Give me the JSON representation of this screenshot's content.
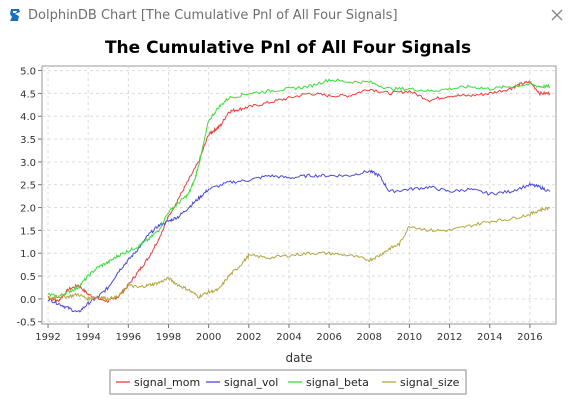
{
  "window": {
    "title": "DolphinDB Chart [The Cumulative Pnl of All Four Signals]",
    "icon": "dolphindb-logo-icon",
    "close_icon": "close-icon"
  },
  "chart_data": {
    "type": "line",
    "title": "The Cumulative Pnl of All Four Signals",
    "xlabel": "date",
    "ylabel": "",
    "xlim": [
      1991.7,
      2017.3
    ],
    "ylim": [
      -0.55,
      5.1
    ],
    "x_ticks": [
      1992,
      1994,
      1996,
      1998,
      2000,
      2002,
      2004,
      2006,
      2008,
      2010,
      2012,
      2014,
      2016
    ],
    "y_ticks": [
      -0.5,
      0.0,
      0.5,
      1.0,
      1.5,
      2.0,
      2.5,
      3.0,
      3.5,
      4.0,
      4.5,
      5.0
    ],
    "y_tick_labels": [
      "-0.5",
      "0.0",
      "0.5",
      "1.0",
      "1.5",
      "2.0",
      "2.5",
      "3.0",
      "3.5",
      "4.0",
      "4.5",
      "5.0"
    ],
    "grid": true,
    "legend": "bottom",
    "series": [
      {
        "name": "signal_mom",
        "color": "#e8403c",
        "x": [
          1992,
          1992.5,
          1993,
          1993.5,
          1994,
          1994.5,
          1995,
          1995.5,
          1996,
          1996.5,
          1997,
          1997.5,
          1998,
          1998.5,
          1999,
          1999.5,
          2000,
          2000.3,
          2000.6,
          2001,
          2001.5,
          2002,
          2003,
          2004,
          2005,
          2006,
          2007,
          2008,
          2009,
          2010,
          2011,
          2012,
          2013,
          2014,
          2015,
          2015.5,
          2016,
          2016.5,
          2017
        ],
        "values": [
          0.05,
          -0.05,
          0.2,
          0.3,
          0.1,
          0.0,
          -0.05,
          0.05,
          0.3,
          0.6,
          0.9,
          1.3,
          1.8,
          2.2,
          2.6,
          3.0,
          3.6,
          3.7,
          3.8,
          4.1,
          4.15,
          4.2,
          4.3,
          4.4,
          4.5,
          4.45,
          4.45,
          4.6,
          4.5,
          4.55,
          4.35,
          4.45,
          4.45,
          4.5,
          4.6,
          4.7,
          4.75,
          4.5,
          4.5
        ]
      },
      {
        "name": "signal_vol",
        "color": "#4b4bd6",
        "x": [
          1992,
          1992.5,
          1993,
          1993.5,
          1994,
          1994.5,
          1995,
          1995.5,
          1996,
          1996.5,
          1997,
          1997.5,
          1998,
          1998.5,
          1999,
          1999.5,
          2000,
          2001,
          2002,
          2003,
          2004,
          2005,
          2006,
          2007,
          2008,
          2008.5,
          2009,
          2010,
          2011,
          2012,
          2013,
          2014,
          2015,
          2016,
          2016.5,
          2017
        ],
        "values": [
          0.0,
          -0.1,
          -0.2,
          -0.3,
          -0.1,
          0.05,
          0.25,
          0.6,
          0.85,
          1.1,
          1.4,
          1.6,
          1.7,
          1.8,
          2.0,
          2.2,
          2.4,
          2.55,
          2.6,
          2.7,
          2.65,
          2.7,
          2.7,
          2.7,
          2.8,
          2.7,
          2.35,
          2.4,
          2.45,
          2.35,
          2.4,
          2.3,
          2.35,
          2.5,
          2.45,
          2.35
        ]
      },
      {
        "name": "signal_beta",
        "color": "#3ddc3d",
        "x": [
          1992,
          1992.5,
          1993,
          1993.5,
          1994,
          1994.5,
          1995,
          1995.5,
          1996,
          1996.5,
          1997,
          1997.5,
          1998,
          1998.5,
          1999,
          1999.3,
          1999.6,
          2000,
          2000.5,
          2001,
          2002,
          2003,
          2004,
          2005,
          2006,
          2007,
          2008,
          2009,
          2010,
          2011,
          2012,
          2013,
          2014,
          2015,
          2016,
          2016.5,
          2017
        ],
        "values": [
          0.1,
          0.05,
          0.15,
          0.25,
          0.5,
          0.7,
          0.8,
          0.95,
          1.05,
          1.15,
          1.3,
          1.5,
          1.9,
          2.1,
          2.3,
          2.6,
          3.1,
          3.9,
          4.2,
          4.4,
          4.5,
          4.55,
          4.6,
          4.65,
          4.8,
          4.75,
          4.75,
          4.6,
          4.6,
          4.55,
          4.6,
          4.65,
          4.6,
          4.65,
          4.7,
          4.65,
          4.65
        ]
      },
      {
        "name": "signal_size",
        "color": "#b5a642",
        "x": [
          1992,
          1992.5,
          1993,
          1993.5,
          1994,
          1994.5,
          1995,
          1995.5,
          1996,
          1996.5,
          1997,
          1997.5,
          1998,
          1998.5,
          1999,
          1999.5,
          2000,
          2000.5,
          2001,
          2001.5,
          2002,
          2003,
          2004,
          2005,
          2006,
          2007,
          2008,
          2008.5,
          2009,
          2009.5,
          2010,
          2011,
          2012,
          2013,
          2014,
          2015,
          2016,
          2016.5,
          2017
        ],
        "values": [
          0.0,
          0.05,
          0.05,
          0.1,
          0.0,
          0.05,
          0.0,
          0.05,
          0.3,
          0.25,
          0.3,
          0.35,
          0.45,
          0.3,
          0.2,
          0.05,
          0.15,
          0.2,
          0.5,
          0.7,
          0.95,
          0.9,
          0.95,
          1.0,
          1.0,
          0.95,
          0.85,
          0.95,
          1.1,
          1.2,
          1.6,
          1.5,
          1.5,
          1.6,
          1.7,
          1.75,
          1.85,
          1.95,
          2.0
        ]
      }
    ]
  }
}
